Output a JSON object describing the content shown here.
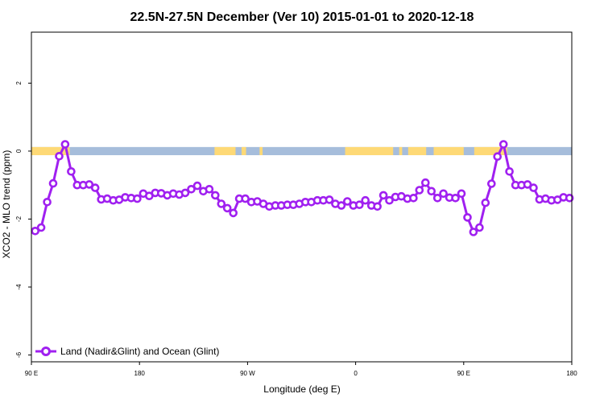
{
  "chart_data": {
    "type": "line",
    "title": "22.5N-27.5N December (Ver 10)   2015-01-01 to 2020-12-18",
    "xlabel": "Longitude (deg E)",
    "ylabel": "XCO2 - MLO trend (ppm)",
    "xlim": [
      90,
      450
    ],
    "ylim": [
      -6.2,
      3.5
    ],
    "x_ticks": [
      {
        "value": 90,
        "label": "90 E"
      },
      {
        "value": 162,
        "label": "180"
      },
      {
        "value": 234,
        "label": "90 W"
      },
      {
        "value": 306,
        "label": "0"
      },
      {
        "value": 378,
        "label": "90 E"
      },
      {
        "value": 450,
        "label": "180"
      }
    ],
    "y_ticks": [
      {
        "value": 2,
        "label": "2"
      },
      {
        "value": 0,
        "label": "0"
      },
      {
        "value": -2,
        "label": "-2"
      },
      {
        "value": -4,
        "label": "-4"
      },
      {
        "value": -6,
        "label": "-6"
      }
    ],
    "surface_band": {
      "y_range": [
        -0.12,
        0.12
      ],
      "ocean_color": "#a6bddb",
      "land_color": "#fed976",
      "land_segments": [
        [
          90,
          115.5
        ],
        [
          212,
          226
        ],
        [
          230,
          233
        ],
        [
          242,
          244
        ],
        [
          299,
          331
        ],
        [
          335,
          337
        ],
        [
          341,
          353
        ],
        [
          358,
          378
        ],
        [
          385,
          407
        ]
      ]
    },
    "series": [
      {
        "name": "Land (Nadir&Glint) and Ocean (Glint)",
        "color": "#a020f0",
        "x": [
          92.5,
          96.5,
          100.5,
          104.5,
          108.5,
          112.5,
          116.5,
          120.5,
          124.5,
          128.5,
          132.5,
          136.5,
          140.5,
          144.5,
          148.5,
          152.5,
          156.5,
          160.5,
          164.5,
          168.5,
          172.5,
          176.5,
          180.5,
          184.5,
          188.5,
          192.5,
          196.5,
          200.5,
          204.5,
          208.5,
          212.5,
          216.5,
          220.5,
          224.5,
          228.5,
          232.5,
          236.5,
          240.5,
          244.5,
          248.5,
          252.5,
          256.5,
          260.5,
          264.5,
          268.5,
          272.5,
          276.5,
          280.5,
          284.5,
          288.5,
          292.5,
          296.5,
          300.5,
          304.5,
          308.5,
          312.5,
          316.5,
          320.5,
          324.5,
          328.5,
          332.5,
          336.5,
          340.5,
          344.5,
          348.5,
          352.5,
          356.5,
          360.5,
          364.5,
          368.5,
          372.5,
          376.5,
          380.5,
          384.5,
          388.5,
          392.5,
          396.5,
          400.5,
          404.5,
          408.5,
          412.5,
          416.5,
          420.5,
          424.5,
          428.5,
          432.5,
          436.5,
          440.5,
          444.5,
          448.5
        ],
        "y": [
          -2.35,
          -2.25,
          -1.5,
          -0.95,
          -0.15,
          0.2,
          -0.6,
          -1.0,
          -1.0,
          -0.98,
          -1.08,
          -1.42,
          -1.4,
          -1.45,
          -1.43,
          -1.36,
          -1.38,
          -1.4,
          -1.25,
          -1.32,
          -1.23,
          -1.24,
          -1.3,
          -1.25,
          -1.28,
          -1.23,
          -1.12,
          -1.02,
          -1.18,
          -1.12,
          -1.3,
          -1.55,
          -1.68,
          -1.82,
          -1.4,
          -1.4,
          -1.5,
          -1.48,
          -1.55,
          -1.63,
          -1.6,
          -1.6,
          -1.58,
          -1.58,
          -1.55,
          -1.5,
          -1.5,
          -1.45,
          -1.45,
          -1.43,
          -1.55,
          -1.6,
          -1.48,
          -1.6,
          -1.58,
          -1.45,
          -1.6,
          -1.63,
          -1.3,
          -1.45,
          -1.35,
          -1.33,
          -1.4,
          -1.38,
          -1.15,
          -0.93,
          -1.18,
          -1.38,
          -1.25,
          -1.37,
          -1.38,
          -1.25,
          -1.95,
          -2.38,
          -2.25,
          -1.52,
          -0.96,
          -0.16,
          0.2,
          -0.6,
          -1.0,
          -1.0,
          -0.98,
          -1.08,
          -1.42,
          -1.4,
          -1.45,
          -1.43,
          -1.36,
          -1.38
        ]
      }
    ],
    "legend_position": "bottom-left",
    "grid": false
  }
}
